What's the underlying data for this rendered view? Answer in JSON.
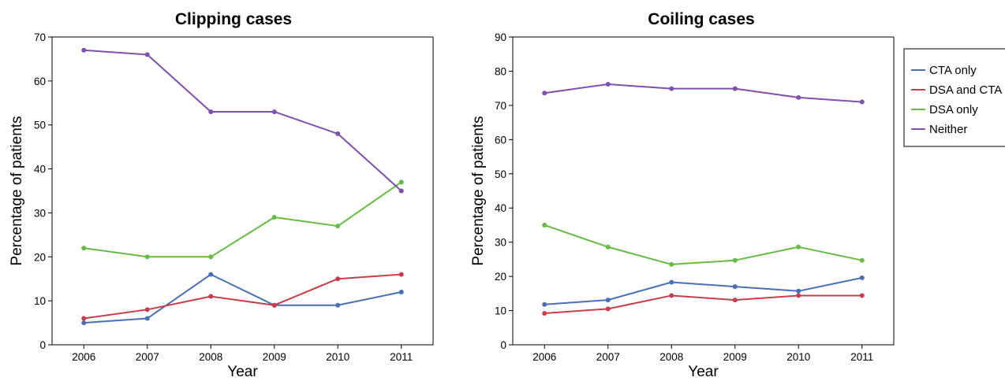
{
  "colors": {
    "CTA only": "#4a6fb8",
    "DSA and CTA": "#c83c4b",
    "DSA only": "#66bb44",
    "Neither": "#7e4fae"
  },
  "legend": {
    "placement": "right",
    "entries": [
      "CTA only",
      "DSA and CTA",
      "DSA only",
      "Neither"
    ]
  },
  "chart_data": [
    {
      "type": "line",
      "title": "Clipping cases",
      "xlabel": "Year",
      "ylabel": "Percentage of patients",
      "ylim": [
        0,
        70
      ],
      "yticks": [
        0,
        10,
        20,
        30,
        40,
        50,
        60,
        70
      ],
      "categories": [
        "2006",
        "2007",
        "2008",
        "2009",
        "2010",
        "2011"
      ],
      "grid": false,
      "series": [
        {
          "name": "CTA only",
          "values": [
            5,
            6,
            16,
            9,
            9,
            12
          ]
        },
        {
          "name": "DSA and CTA",
          "values": [
            6,
            8,
            11,
            9,
            15,
            16
          ]
        },
        {
          "name": "DSA only",
          "values": [
            22,
            20,
            20,
            29,
            27,
            37
          ]
        },
        {
          "name": "Neither",
          "values": [
            67,
            66,
            53,
            53,
            48,
            35
          ]
        }
      ]
    },
    {
      "type": "line",
      "title": "Coiling cases",
      "xlabel": "Year",
      "ylabel": "Percentage of patients",
      "ylim": [
        0,
        90
      ],
      "yticks": [
        0,
        10,
        20,
        30,
        40,
        50,
        60,
        70,
        80,
        90
      ],
      "categories": [
        "2006",
        "2007",
        "2008",
        "2009",
        "2010",
        "2011"
      ],
      "grid": false,
      "series": [
        {
          "name": "CTA only",
          "values": [
            11.8,
            13.1,
            18.3,
            17,
            15.7,
            19.6
          ]
        },
        {
          "name": "DSA and CTA",
          "values": [
            9.2,
            10.5,
            14.4,
            13.1,
            14.4,
            14.4
          ]
        },
        {
          "name": "DSA only",
          "values": [
            35,
            28.6,
            23.5,
            24.7,
            28.6,
            24.7
          ]
        },
        {
          "name": "Neither",
          "values": [
            73.6,
            76.2,
            74.9,
            74.9,
            72.3,
            71
          ]
        }
      ]
    }
  ]
}
